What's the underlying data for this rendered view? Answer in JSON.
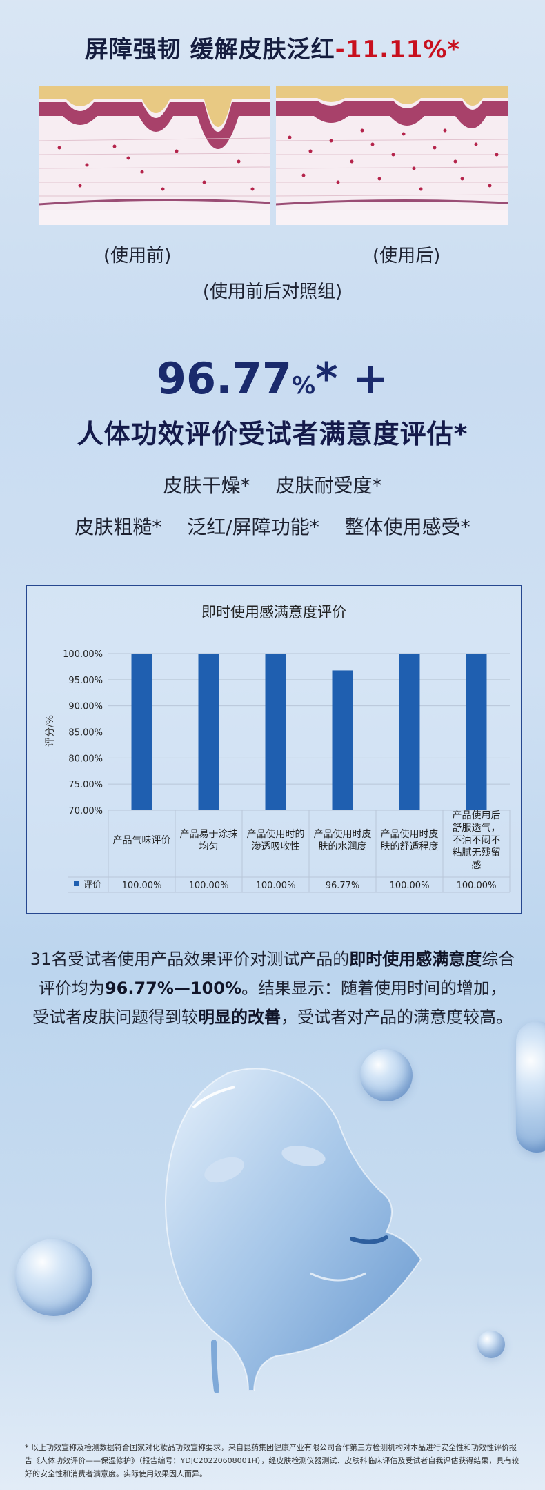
{
  "headline": {
    "main": "屏障强韧 缓解皮肤泛红",
    "highlight": "-11.11%*"
  },
  "skin_compare": {
    "before_label": "(使用前)",
    "after_label": "(使用后)",
    "control_label": "(使用前后对照组)"
  },
  "satisfaction": {
    "percent_number": "96.77",
    "percent_sign": "%",
    "percent_suffix": "* +",
    "title": "人体功效评价受试者满意度评估*",
    "tags_row1": [
      "皮肤干燥*",
      "皮肤耐受度*"
    ],
    "tags_row2": [
      "皮肤粗糙*",
      "泛红/屏障功能*",
      "整体使用感受*"
    ]
  },
  "chart_data": {
    "type": "bar",
    "title": "即时使用感满意度评价",
    "ylabel": "评分/%",
    "ylim": [
      70,
      100
    ],
    "yticks": [
      "100.00%",
      "95.00%",
      "90.00%",
      "85.00%",
      "80.00%",
      "75.00%",
      "70.00%"
    ],
    "categories": [
      "产品气味评价",
      "产品易于涂抹均匀",
      "产品使用时的渗透吸收性",
      "产品使用时皮肤的水润度",
      "产品使用时皮肤的舒适程度",
      "产品使用后舒服透气，不油不闷不粘腻无残留感"
    ],
    "series": [
      {
        "name": "评价",
        "values": [
          100,
          100,
          100,
          96.77,
          100,
          100
        ],
        "labels": [
          "100.00%",
          "100.00%",
          "100.00%",
          "96.77%",
          "100.00%",
          "100.00%"
        ]
      }
    ],
    "color": "#1f5fb0",
    "grid": true,
    "legend": "table-bottom-left"
  },
  "summary": {
    "p1_pre": "31名受试者使用产品效果评价对测试产品的",
    "p1_bold": "即时使用感满意度",
    "p1_post": "综合",
    "p2_pre": "评价均为",
    "p2_bold": "96.77%—100%",
    "p2_post": "。结果显示：随着使用时间的增加，",
    "p3_pre": "受试者皮肤问题得到较",
    "p3_bold": "明显的改善",
    "p3_post": "，受试者对产品的满意度较高。"
  },
  "footnote": "* 以上功效宣称及检测数据符合国家对化妆品功效宣称要求，来自昆药集团健康产业有限公司合作第三方检测机构对本品进行安全性和功效性评价报告《人体功效评价——保湿修护》（报告编号：YDJC20220608001H），经皮肤检测仪器测试、皮肤科临床评估及受试者自我评估获得结果，具有较好的安全性和消费者满意度。实际使用效果因人而异。",
  "colors": {
    "accent_red": "#c8101e",
    "navy": "#1a2a6c",
    "bar_blue": "#1f5fb0"
  },
  "icons": [
    "skin-cross-section-before",
    "skin-cross-section-after",
    "water-bubble",
    "transparent-face-mask"
  ]
}
